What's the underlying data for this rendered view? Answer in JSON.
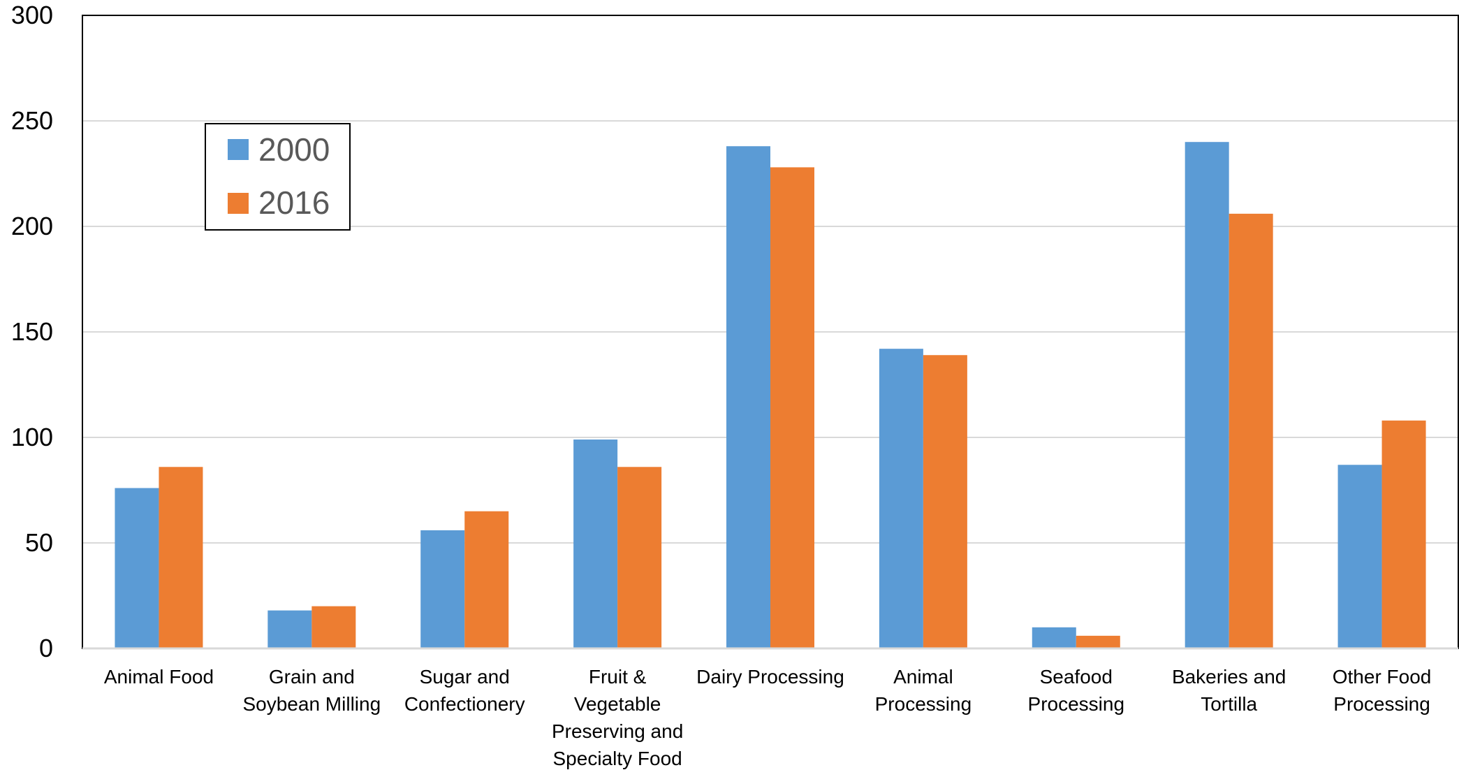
{
  "chart_data": {
    "type": "bar",
    "title": "",
    "xlabel": "",
    "ylabel": "",
    "ylim": [
      0,
      300
    ],
    "yticks": [
      0,
      50,
      100,
      150,
      200,
      250,
      300
    ],
    "grid": true,
    "legend_position": "top-left",
    "categories": [
      [
        "Animal Food"
      ],
      [
        "Grain and",
        "Soybean Milling"
      ],
      [
        "Sugar and",
        "Confectionery"
      ],
      [
        "Fruit &",
        "Vegetable",
        "Preserving and",
        "Specialty Food"
      ],
      [
        "Dairy Processing"
      ],
      [
        "Animal",
        "Processing"
      ],
      [
        "Seafood",
        "Processing"
      ],
      [
        "Bakeries and",
        "Tortilla"
      ],
      [
        "Other Food",
        "Processing"
      ]
    ],
    "series": [
      {
        "name": "2000",
        "color": "#5B9BD5",
        "values": [
          76,
          18,
          56,
          99,
          238,
          142,
          10,
          240,
          87
        ]
      },
      {
        "name": "2016",
        "color": "#ED7D31",
        "values": [
          86,
          20,
          65,
          86,
          228,
          139,
          6,
          206,
          108
        ]
      }
    ]
  }
}
